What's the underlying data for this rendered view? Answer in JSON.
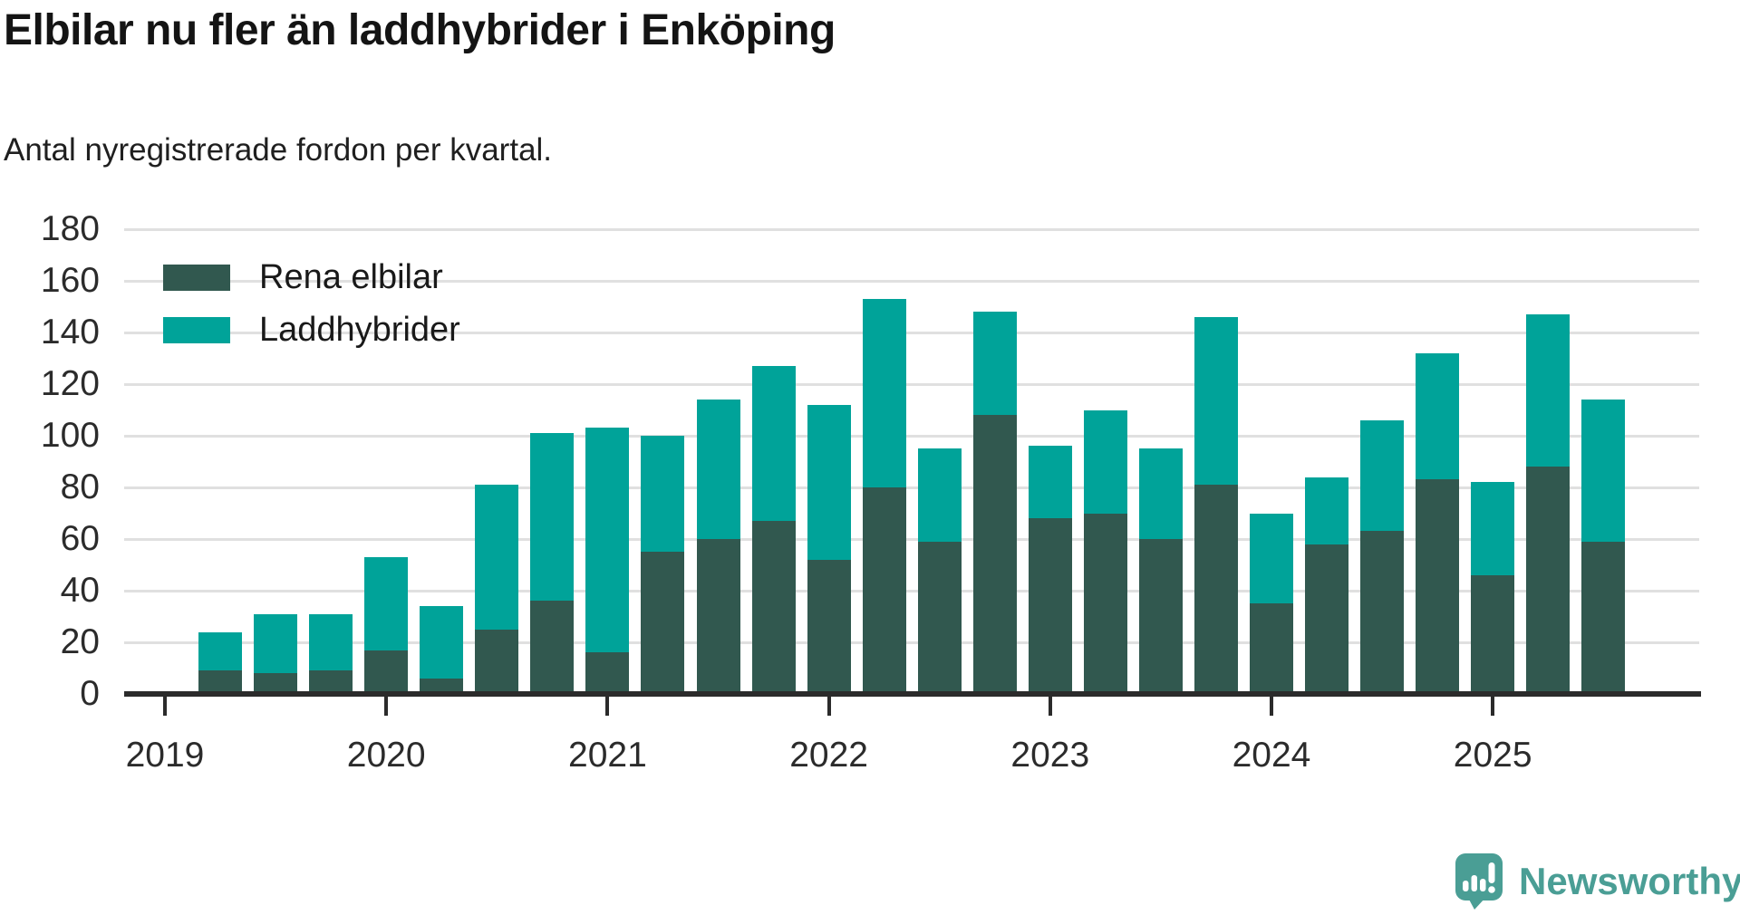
{
  "header": {
    "title": "Elbilar nu fler än laddhybrider i Enköping",
    "subtitle": "Antal nyregistrerade fordon per kvartal."
  },
  "footer": {
    "brand": "Newsworthy",
    "brand_color": "#4a9e95"
  },
  "chart_data": {
    "type": "bar",
    "stacked": true,
    "title": "Elbilar nu fler än laddhybrider i Enköping",
    "subtitle": "Antal nyregistrerade fordon per kvartal.",
    "xlabel": "",
    "ylabel": "",
    "ylim": [
      0,
      180
    ],
    "yticks": [
      0,
      20,
      40,
      60,
      80,
      100,
      120,
      140,
      160,
      180
    ],
    "grid": true,
    "legend_position": "top-left",
    "x_year_ticks": [
      2019,
      2020,
      2021,
      2022,
      2023,
      2024,
      2025
    ],
    "quarters": [
      "2019 Q2",
      "2019 Q3",
      "2019 Q4",
      "2020 Q1",
      "2020 Q2",
      "2020 Q3",
      "2020 Q4",
      "2021 Q1",
      "2021 Q2",
      "2021 Q3",
      "2021 Q4",
      "2022 Q1",
      "2022 Q2",
      "2022 Q3",
      "2022 Q4",
      "2023 Q1",
      "2023 Q2",
      "2023 Q3",
      "2023 Q4",
      "2024 Q1",
      "2024 Q2",
      "2024 Q3",
      "2024 Q4",
      "2025 Q1",
      "2025 Q2",
      "2025 Q3"
    ],
    "series": [
      {
        "name": "Rena elbilar",
        "color": "#31584f",
        "values": [
          9,
          8,
          9,
          17,
          6,
          25,
          36,
          16,
          55,
          60,
          67,
          52,
          80,
          59,
          108,
          68,
          70,
          60,
          81,
          35,
          58,
          63,
          83,
          46,
          88,
          59
        ]
      },
      {
        "name": "Laddhybrider",
        "color": "#00a399",
        "values": [
          15,
          23,
          22,
          36,
          28,
          56,
          65,
          87,
          45,
          54,
          60,
          60,
          73,
          36,
          40,
          28,
          40,
          35,
          65,
          35,
          26,
          43,
          49,
          36,
          59,
          55
        ]
      }
    ],
    "colors": {
      "gridline": "#e0e0e0",
      "axis": "#2b2b2b",
      "text": "#2b2b2b"
    }
  }
}
